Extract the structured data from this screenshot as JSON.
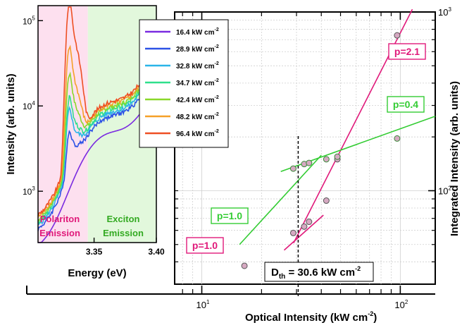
{
  "chart_data": [
    {
      "type": "line",
      "subplot": "main",
      "xlabel": "Optical Intensity (kW cm",
      "xlabel_sup": "-2",
      "xlabel_end": ")",
      "ylabel": "Integrated Intensity (arb. units)",
      "xscale": "log",
      "yscale": "log",
      "xlim": [
        7.3,
        150
      ],
      "ylim": [
        30,
        1000
      ],
      "xticks": [
        {
          "value": 10,
          "label": "10",
          "sup": "1"
        },
        {
          "value": 100,
          "label": "10",
          "sup": "2"
        }
      ],
      "yticks": [
        {
          "value": 100,
          "label": "10",
          "sup": "2"
        },
        {
          "value": 1000,
          "label": "10",
          "sup": "3"
        }
      ],
      "grid": true,
      "threshold": {
        "x": 30.6,
        "label_main": "D",
        "label_sub": "th",
        "label_rest": " = 30.6 kW cm",
        "label_sup": "-2"
      },
      "series": [
        {
          "name": "Polariton",
          "color": "#e0197a",
          "points": [
            [
              16.4,
              38
            ],
            [
              28.9,
              58
            ],
            [
              32.8,
              63
            ],
            [
              34.7,
              67
            ],
            [
              42.4,
              88
            ],
            [
              48.2,
              150
            ],
            [
              96.4,
              740
            ]
          ],
          "fits": [
            {
              "slope": "1.0",
              "label": "p=1.0",
              "x": [
                26,
                41
              ],
              "y": [
                46.5,
                73
              ]
            },
            {
              "slope": "2.1",
              "label": "p=2.1",
              "x": [
                29,
                115
              ],
              "y": [
                51,
                1035
              ]
            }
          ]
        },
        {
          "name": "Exciton",
          "color": "#33cc33",
          "points": [
            [
              16.4,
              70
            ],
            [
              28.9,
              133
            ],
            [
              32.8,
              141
            ],
            [
              34.7,
              143
            ],
            [
              42.4,
              150
            ],
            [
              48.2,
              155
            ],
            [
              96.4,
              196
            ]
          ],
          "fits": [
            {
              "slope": "1.0",
              "label": "p=1.0",
              "x": [
                15.5,
                40
              ],
              "y": [
                50,
                158
              ]
            },
            {
              "slope": "0.4",
              "label": "p=0.4",
              "x": [
                25,
                150
              ],
              "y": [
                128
              ],
              "y_end": [
                261
              ]
            }
          ]
        }
      ]
    },
    {
      "type": "line",
      "subplot": "inset",
      "xlabel": "Energy (eV)",
      "ylabel": "Intensity (arb. units)",
      "yscale": "log",
      "xlim": [
        3.305,
        3.4
      ],
      "ylim": [
        250,
        150000
      ],
      "xticks": [
        {
          "value": 3.35,
          "label": "3.35"
        },
        {
          "value": 3.4,
          "label": "3.40"
        }
      ],
      "yticks": [
        {
          "value": 1000,
          "label": "10",
          "sup": "3"
        },
        {
          "value": 10000,
          "label": "10",
          "sup": "4"
        },
        {
          "value": 100000,
          "label": "10",
          "sup": "5"
        }
      ],
      "regions": [
        {
          "name": "polariton",
          "from": 3.305,
          "to": 3.345,
          "color": "#fde0ef",
          "label1": "Polariton",
          "label2": "Emission",
          "label_color": "#e0197a"
        },
        {
          "name": "exciton",
          "from": 3.345,
          "to": 3.4,
          "color": "#e2f8dc",
          "label1": "Exciton",
          "label2": "Emission",
          "label_color": "#33aa22"
        }
      ],
      "legend": {
        "position": "top-right"
      },
      "series": [
        {
          "label": "16.4 kW cm",
          "sup": "-2",
          "color": "#7a2be0",
          "polariton_scale": 1.0,
          "peak_ratio": 0.0,
          "base": 2900
        },
        {
          "label": "28.9 kW cm",
          "sup": "-2",
          "color": "#2c52e6",
          "polariton_scale": 1.0,
          "peak_ratio": 0.6,
          "base": 4500
        },
        {
          "label": "32.8 kW cm",
          "sup": "-2",
          "color": "#2ab5e8",
          "polariton_scale": 1.0,
          "peak_ratio": 1.2,
          "base": 5000
        },
        {
          "label": "34.7 kW cm",
          "sup": "-2",
          "color": "#2fe08c",
          "polariton_scale": 1.0,
          "peak_ratio": 1.6,
          "base": 5400
        },
        {
          "label": "42.4 kW cm",
          "sup": "-2",
          "color": "#8ad82a",
          "polariton_scale": 1.0,
          "peak_ratio": 3.0,
          "base": 5800
        },
        {
          "label": "48.2 kW cm",
          "sup": "-2",
          "color": "#f5a028",
          "polariton_scale": 1.0,
          "peak_ratio": 6.0,
          "base": 6200
        },
        {
          "label": "96.4 kW cm",
          "sup": "-2",
          "color": "#ee4f23",
          "polariton_scale": 1.0,
          "peak_ratio": 20.0,
          "base": 6600
        }
      ]
    }
  ]
}
